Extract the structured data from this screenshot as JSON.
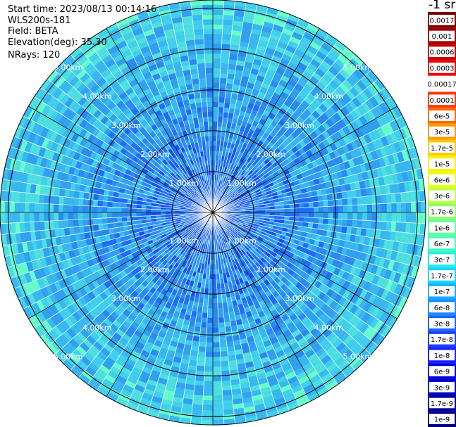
{
  "header": {
    "start_time": "Start time: 2023/08/13 00:14:16",
    "instrument": "WLS200s-181",
    "field": "Field: BETA",
    "elevation": "Elevation(deg): 35.30",
    "nrays": "NRays: 120"
  },
  "chart_data": {
    "type": "heatmap",
    "projection": "polar",
    "rays": 120,
    "range_rings_km": [
      1,
      2,
      3,
      4,
      5
    ],
    "ring_labels": [
      "1.00km",
      "2.00km",
      "3.00km",
      "4.00km",
      "5.00km"
    ],
    "radial_lines_deg": [
      0,
      30,
      60,
      90,
      120,
      150,
      180,
      210,
      240,
      270,
      300,
      330
    ],
    "max_range_km": 5.2,
    "colorbar": {
      "title": "-1 sr",
      "labels": [
        "0.0017",
        "0.001",
        "0.0006",
        "0.0003",
        "0.00017",
        "0.0001",
        "6e-5",
        "3e-5",
        "1.7e-5",
        "1e-5",
        "6e-6",
        "3e-6",
        "1.7e-6",
        "1e-6",
        "6e-7",
        "3e-7",
        "1.7e-7",
        "1e-7",
        "6e-8",
        "3e-8",
        "1.7e-8",
        "1e-8",
        "6e-9",
        "3e-9",
        "1.7e-9",
        "1e-9"
      ],
      "colors": [
        "#7a0000",
        "#a00000",
        "#c80000",
        "#ee0000",
        "#ffffff",
        "#ff3a00",
        "#ff6a00",
        "#ff9a00",
        "#ffc800",
        "#ffee00",
        "#e6ff1a",
        "#c0ff40",
        "#90ff6a",
        "#66ff99",
        "#40ffc0",
        "#1ff0e6",
        "#10d6ff",
        "#10b0ff",
        "#1a8cff",
        "#1a66ff",
        "#1a40ff",
        "#1a20ff",
        "#0000e6",
        "#0000c8",
        "#0000a0",
        "#000078"
      ]
    }
  }
}
